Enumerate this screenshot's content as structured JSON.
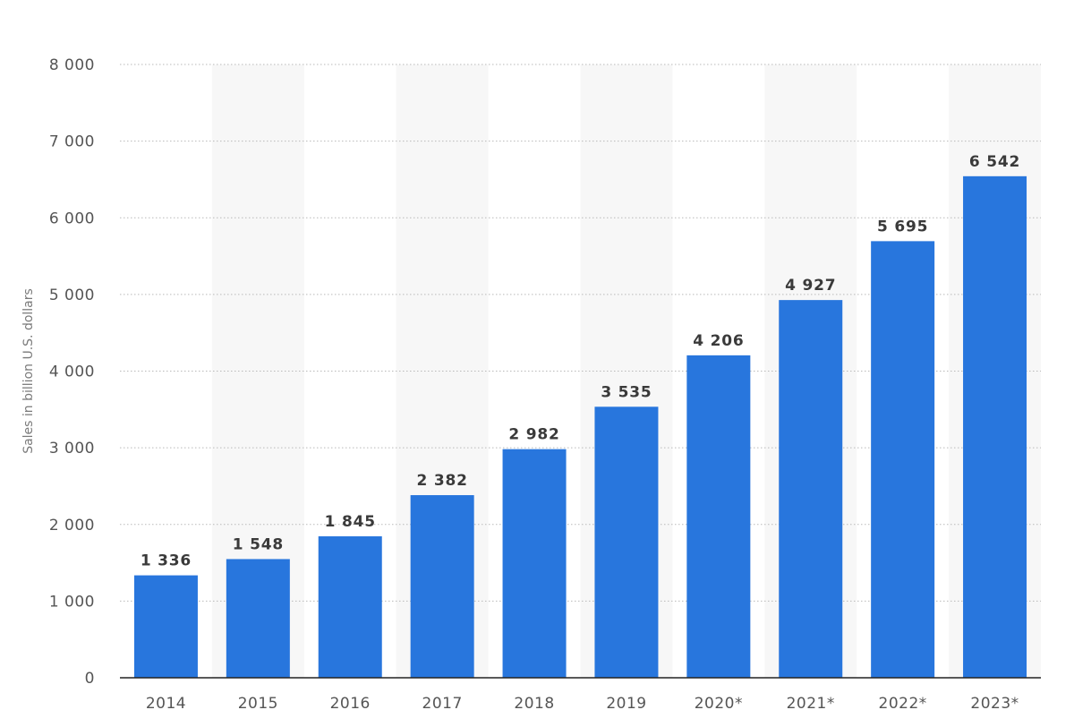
{
  "chart_data": {
    "type": "bar",
    "categories": [
      "2014",
      "2015",
      "2016",
      "2017",
      "2018",
      "2019",
      "2020*",
      "2021*",
      "2022*",
      "2023*"
    ],
    "values": [
      1336,
      1548,
      1845,
      2382,
      2982,
      3535,
      4206,
      4927,
      5695,
      6542
    ],
    "value_labels": [
      "1 336",
      "1 548",
      "1 845",
      "2 382",
      "2 982",
      "3 535",
      "4 206",
      "4 927",
      "5 695",
      "6 542"
    ],
    "ylabel": "Sales in billion U.S. dollars",
    "ylim": [
      0,
      8000
    ],
    "yticks": [
      0,
      1000,
      2000,
      3000,
      4000,
      5000,
      6000,
      7000,
      8000
    ],
    "ytick_labels": [
      "0",
      "1 000",
      "2 000",
      "3 000",
      "4 000",
      "5 000",
      "6 000",
      "7 000",
      "8 000"
    ],
    "grid": true,
    "bar_color": "#2876dd"
  }
}
